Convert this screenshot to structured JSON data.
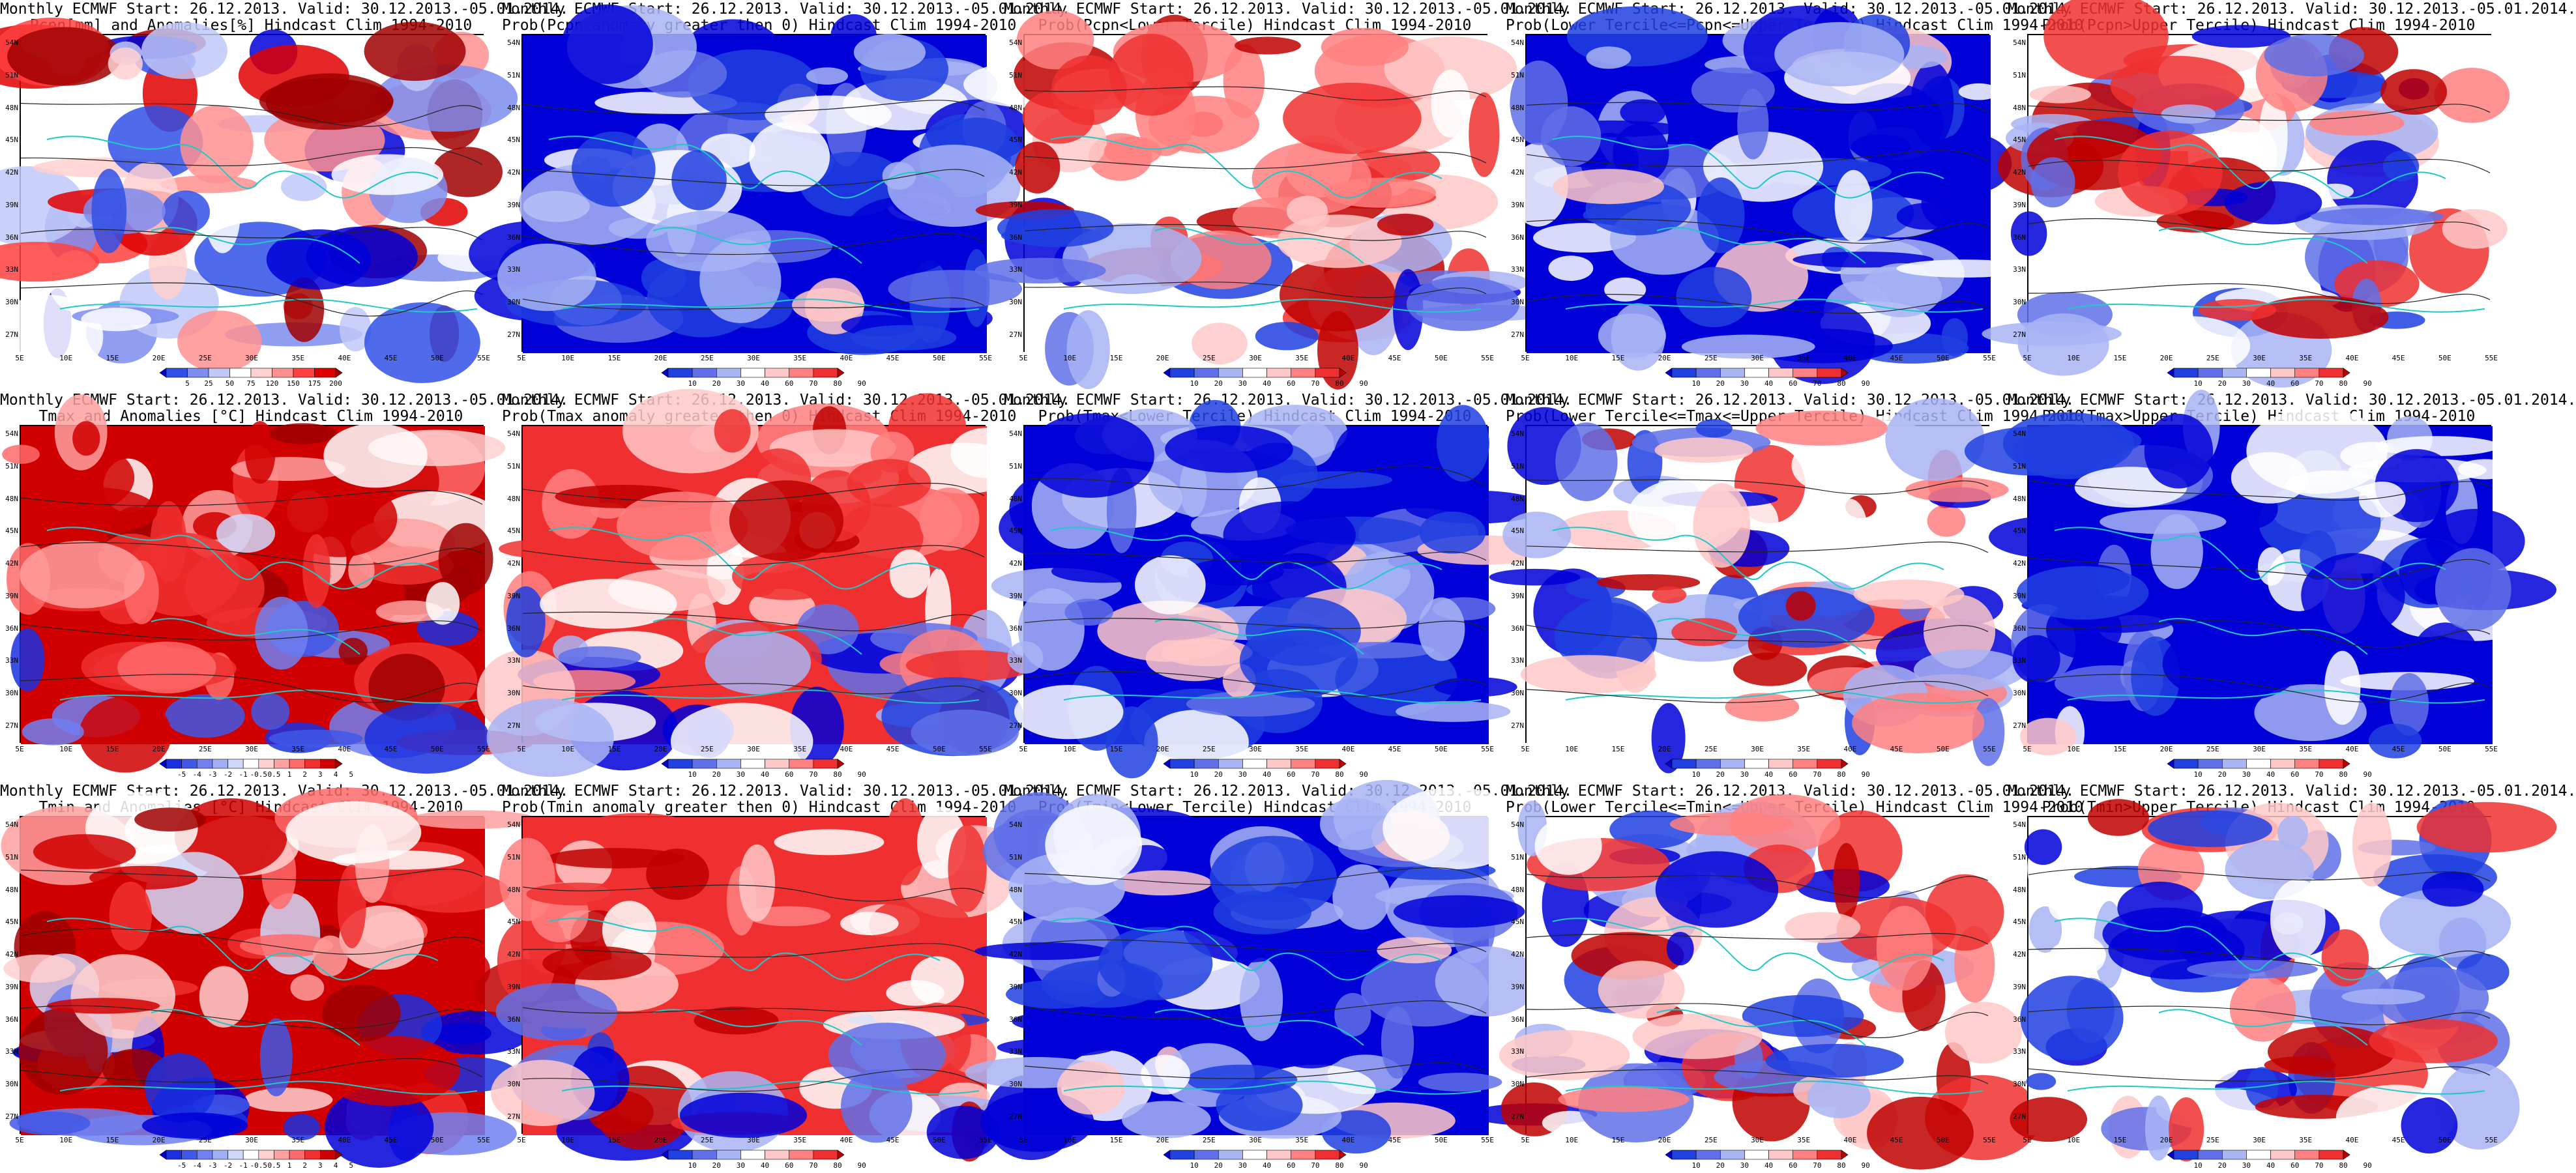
{
  "titles": [
    [
      "Monthly ECMWF Start: 26.12.2013. Valid: 30.12.2013.-05.01.2014.",
      "Pcpn[mm] and Anomalies[%] Hindcast Clim 1994-2010"
    ],
    [
      "Monthly ECMWF Start: 26.12.2013. Valid: 30.12.2013.-05.01.2014.",
      "Prob(Pcpn anomaly greater then 0) Hindcast Clim 1994-2010"
    ],
    [
      "Monthly ECMWF Start: 26.12.2013. Valid: 30.12.2013.-05.01.2014.",
      "Prob(Pcpn<Lower Tercile) Hindcast Clim 1994-2010"
    ],
    [
      "Monthly ECMWF Start: 26.12.2013. Valid: 30.12.2013.-05.01.2014.",
      "Prob(Lower Tercile<=Pcpn<=Upper Tercile) Hindcast Clim 1994-2010"
    ],
    [
      "Monthly ECMWF Start: 26.12.2013. Valid: 30.12.2013.-05.01.2014.",
      "Prob(Pcpn>Upper Tercile) Hindcast Clim 1994-2010"
    ],
    [
      "Monthly ECMWF Start: 26.12.2013. Valid: 30.12.2013.-05.01.2014.",
      "Tmax and Anomalies [°C] Hindcast Clim 1994-2010"
    ],
    [
      "Monthly ECMWF Start: 26.12.2013. Valid: 30.12.2013.-05.01.2014.",
      "Prob(Tmax anomaly greater then 0) Hindcast Clim 1994-2010"
    ],
    [
      "Monthly ECMWF Start: 26.12.2013. Valid: 30.12.2013.-05.01.2014.",
      "Prob(Tmax<Lower Tercile) Hindcast Clim 1994-2010"
    ],
    [
      "Monthly ECMWF Start: 26.12.2013. Valid: 30.12.2013.-05.01.2014.",
      "Prob(Lower Tercile<=Tmax<=Upper Tercile) Hindcast Clim 1994-2010"
    ],
    [
      "Monthly ECMWF Start: 26.12.2013. Valid: 30.12.2013.-05.01.2014.",
      "Prob(Tmax>Upper Tercile) Hindcast Clim 1994-2010"
    ],
    [
      "Monthly ECMWF Start: 26.12.2013. Valid: 30.12.2013.-05.01.2014.",
      "Tmin and Anomalies [°C] Hindcast Clim 1994-2010"
    ],
    [
      "Monthly ECMWF Start: 26.12.2013. Valid: 30.12.2013.-05.01.2014.",
      "Prob(Tmin anomaly greater then 0) Hindcast Clim 1994-2010"
    ],
    [
      "Monthly ECMWF Start: 26.12.2013. Valid: 30.12.2013.-05.01.2014.",
      "Prob(Tmin<Lower Tercile) Hindcast Clim 1994-2010"
    ],
    [
      "Monthly ECMWF Start: 26.12.2013. Valid: 30.12.2013.-05.01.2014.",
      "Prob(Lower Tercile<=Tmin<=Upper Tercile) Hindcast Clim 1994-2010"
    ],
    [
      "Monthly ECMWF Start: 26.12.2013. Valid: 30.12.2013.-05.01.2014.",
      "Prob(Tmin>Upper Tercile) Hindcast Clim 1994-2010"
    ]
  ],
  "lat_ticks": [
    "54N",
    "51N",
    "48N",
    "45N",
    "42N",
    "39N",
    "36N",
    "33N",
    "30N",
    "27N"
  ],
  "lon_ticks": [
    "5E",
    "10E",
    "15E",
    "20E",
    "25E",
    "30E",
    "35E",
    "40E",
    "45E",
    "50E",
    "55E"
  ],
  "colorbars": {
    "pcpn_anom": {
      "labels": [
        "5",
        "25",
        "50",
        "75",
        "120",
        "150",
        "175",
        "200"
      ],
      "colors": [
        "#0000d8",
        "#3050e8",
        "#7d8df0",
        "#c0c8f8",
        "#ffffff",
        "#ffd0d0",
        "#ff9090",
        "#ff4040",
        "#e00000",
        "#a00000"
      ]
    },
    "prob": {
      "labels": [
        "10",
        "20",
        "30",
        "40",
        "60",
        "70",
        "80",
        "90"
      ],
      "colors": [
        "#0000d8",
        "#2040e0",
        "#6070e8",
        "#a8b4f4",
        "#ffffff",
        "#ffc8c8",
        "#ff8080",
        "#f03030",
        "#c00000"
      ]
    },
    "temp_anom": {
      "labels": [
        "-5",
        "-4",
        "-3",
        "-2",
        "-1",
        "-0.5",
        "0.5",
        "1",
        "2",
        "3",
        "4",
        "5"
      ],
      "colors": [
        "#0000d8",
        "#1a30e0",
        "#4058e8",
        "#7080f0",
        "#a0aef4",
        "#d0d8fa",
        "#ffffff",
        "#ffd0d0",
        "#ffa0a0",
        "#ff6a6a",
        "#f03030",
        "#d00000",
        "#a00000"
      ]
    }
  },
  "panel_colorbar": [
    "pcpn_anom",
    "prob",
    "prob",
    "prob",
    "prob",
    "temp_anom",
    "prob",
    "prob",
    "prob",
    "prob",
    "temp_anom",
    "prob",
    "prob",
    "prob",
    "prob"
  ],
  "panel_color_mode": [
    "mixed",
    "blue",
    "red",
    "blue",
    "mixed",
    "redn",
    "redn",
    "blue",
    "mixed",
    "blue",
    "redn",
    "redn",
    "blue",
    "mixed",
    "mixed"
  ]
}
